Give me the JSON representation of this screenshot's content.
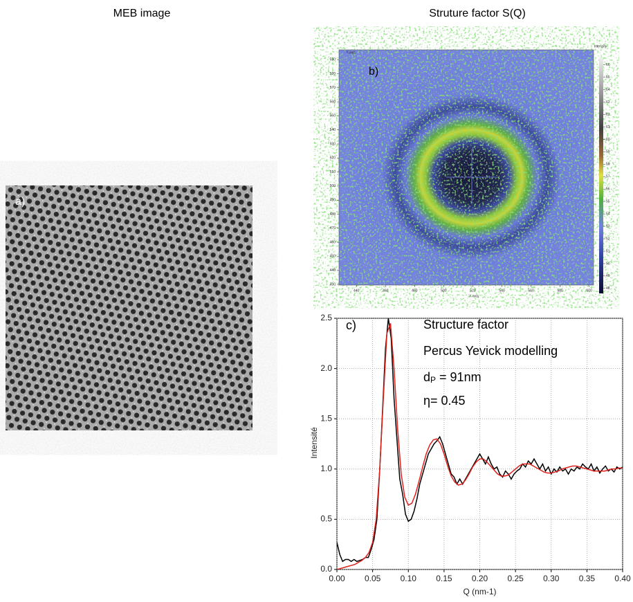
{
  "image_panel": {
    "title": "MEB image",
    "label": "a)"
  },
  "chart_data": [
    {
      "type": "heatmap",
      "title": "Struture factor S(Q)",
      "label": "b)",
      "xlabel": "X-axis",
      "ylabel": "Y-axis",
      "xlim": [
        428,
        603
      ],
      "ylim": [
        429.5,
        597
      ],
      "xticks": [
        440,
        460,
        480,
        500,
        520,
        540,
        560,
        580,
        600
      ],
      "yticks": [
        430,
        440,
        450,
        460,
        470,
        480,
        490,
        500,
        510,
        520,
        530,
        540,
        550,
        560,
        570,
        580,
        590
      ],
      "colorbar_label": "Intensity",
      "clim": [
        47.6,
        66.6
      ],
      "cticks": [
        48,
        49,
        50,
        51,
        52,
        53,
        54,
        55,
        56,
        57,
        58,
        59,
        60,
        61,
        62,
        63,
        64,
        65,
        66
      ]
    },
    {
      "type": "line",
      "xlabel": "Q (nm-1)",
      "ylabel": "Intensité",
      "label": "c)",
      "annotations": [
        "Structure factor",
        "Percus Yevick modelling"
      ],
      "diameter": {
        "symbol": "d",
        "subscript": "P",
        "text": " = 91nm"
      },
      "eta": "η= 0.45",
      "xlim": [
        0,
        0.4
      ],
      "ylim": [
        0,
        2.5
      ],
      "grid": true,
      "xticks": [
        {
          "value": 0,
          "label": "0.00"
        },
        0.05,
        {
          "value": 0.1,
          "label": "0.10"
        },
        0.15,
        {
          "value": 0.2,
          "label": "0.20"
        },
        0.25,
        {
          "value": 0.3,
          "label": "0.30"
        },
        0.35,
        {
          "value": 0.4,
          "label": "0.40"
        }
      ],
      "yticks": [
        {
          "value": 0,
          "label": "0.0"
        },
        0.5,
        {
          "value": 1,
          "label": "1.0"
        },
        1.5,
        {
          "value": 2,
          "label": "2.0"
        },
        2.5
      ],
      "series": [
        {
          "color": "#000000",
          "x": [
            0,
            0.004,
            0.008,
            0.012,
            0.016,
            0.02,
            0.024,
            0.028,
            0.032,
            0.036,
            0.04,
            0.044,
            0.048,
            0.052,
            0.056,
            0.06,
            0.064,
            0.068,
            0.072,
            0.076,
            0.08,
            0.084,
            0.088,
            0.092,
            0.096,
            0.1,
            0.104,
            0.108,
            0.112,
            0.116,
            0.12,
            0.124,
            0.128,
            0.132,
            0.136,
            0.14,
            0.144,
            0.148,
            0.152,
            0.156,
            0.16,
            0.164,
            0.168,
            0.172,
            0.176,
            0.18,
            0.184,
            0.188,
            0.192,
            0.196,
            0.2,
            0.204,
            0.208,
            0.212,
            0.216,
            0.22,
            0.224,
            0.228,
            0.232,
            0.236,
            0.24,
            0.244,
            0.248,
            0.252,
            0.256,
            0.26,
            0.264,
            0.268,
            0.272,
            0.276,
            0.28,
            0.284,
            0.288,
            0.292,
            0.296,
            0.3,
            0.304,
            0.308,
            0.312,
            0.316,
            0.32,
            0.324,
            0.328,
            0.332,
            0.336,
            0.34,
            0.344,
            0.348,
            0.352,
            0.356,
            0.36,
            0.364,
            0.368,
            0.372,
            0.376,
            0.38,
            0.384,
            0.388,
            0.392,
            0.396,
            0.4
          ],
          "values": [
            0.27,
            0.15,
            0.08,
            0.1,
            0.1,
            0.08,
            0.1,
            0.08,
            0.09,
            0.1,
            0.12,
            0.12,
            0.2,
            0.3,
            0.5,
            1.0,
            1.6,
            2.2,
            2.5,
            2.3,
            1.7,
            1.3,
            0.9,
            0.75,
            0.55,
            0.48,
            0.5,
            0.58,
            0.7,
            0.85,
            0.95,
            1.05,
            1.15,
            1.2,
            1.25,
            1.28,
            1.32,
            1.25,
            1.15,
            1.05,
            0.95,
            0.92,
            0.85,
            0.9,
            0.85,
            0.9,
            0.95,
            1.0,
            1.05,
            1.1,
            1.15,
            1.1,
            1.05,
            1.12,
            1.05,
            1.0,
            1.02,
            0.95,
            0.92,
            0.98,
            0.95,
            0.9,
            0.95,
            0.98,
            1.0,
            1.05,
            1.02,
            1.08,
            1.05,
            1.1,
            1.05,
            1.0,
            1.05,
            0.98,
            1.02,
            0.95,
            1.0,
            0.97,
            1.02,
            0.98,
            1.0,
            0.95,
            1.0,
            0.98,
            1.02,
            1.0,
            1.05,
            1.02,
            1.0,
            1.05,
            0.98,
            1.02,
            0.96,
            1.0,
            1.03,
            0.98,
            1.0,
            0.97,
            1.02,
            1.0,
            1.02
          ]
        },
        {
          "color": "#e0201b",
          "x": [
            0,
            0.005,
            0.01,
            0.015,
            0.02,
            0.025,
            0.03,
            0.035,
            0.04,
            0.045,
            0.05,
            0.055,
            0.06,
            0.065,
            0.07,
            0.075,
            0.08,
            0.085,
            0.09,
            0.095,
            0.1,
            0.105,
            0.11,
            0.115,
            0.12,
            0.125,
            0.13,
            0.135,
            0.14,
            0.145,
            0.15,
            0.155,
            0.16,
            0.165,
            0.17,
            0.175,
            0.18,
            0.185,
            0.19,
            0.195,
            0.2,
            0.205,
            0.21,
            0.215,
            0.22,
            0.225,
            0.23,
            0.235,
            0.24,
            0.245,
            0.25,
            0.255,
            0.26,
            0.265,
            0.27,
            0.275,
            0.28,
            0.285,
            0.29,
            0.295,
            0.3,
            0.305,
            0.31,
            0.315,
            0.32,
            0.325,
            0.33,
            0.335,
            0.34,
            0.345,
            0.35,
            0.355,
            0.36,
            0.365,
            0.37,
            0.375,
            0.38,
            0.385,
            0.39,
            0.395,
            0.4
          ],
          "values": [
            0,
            0.01,
            0.02,
            0.03,
            0.04,
            0.05,
            0.07,
            0.09,
            0.12,
            0.17,
            0.27,
            0.5,
            1.0,
            1.7,
            2.35,
            2.45,
            2.0,
            1.4,
            0.95,
            0.72,
            0.64,
            0.66,
            0.75,
            0.88,
            1.02,
            1.15,
            1.24,
            1.29,
            1.3,
            1.25,
            1.15,
            1.03,
            0.93,
            0.87,
            0.84,
            0.85,
            0.89,
            0.95,
            1.02,
            1.07,
            1.1,
            1.1,
            1.07,
            1.03,
            0.99,
            0.95,
            0.93,
            0.93,
            0.94,
            0.97,
            1.0,
            1.03,
            1.05,
            1.05,
            1.05,
            1.03,
            1.01,
            0.99,
            0.97,
            0.96,
            0.96,
            0.97,
            0.98,
            1.0,
            1.01,
            1.02,
            1.03,
            1.03,
            1.02,
            1.01,
            1.0,
            0.99,
            0.98,
            0.98,
            0.98,
            0.98,
            0.99,
            1.0,
            1.0,
            1.01,
            1.01
          ]
        }
      ]
    }
  ]
}
